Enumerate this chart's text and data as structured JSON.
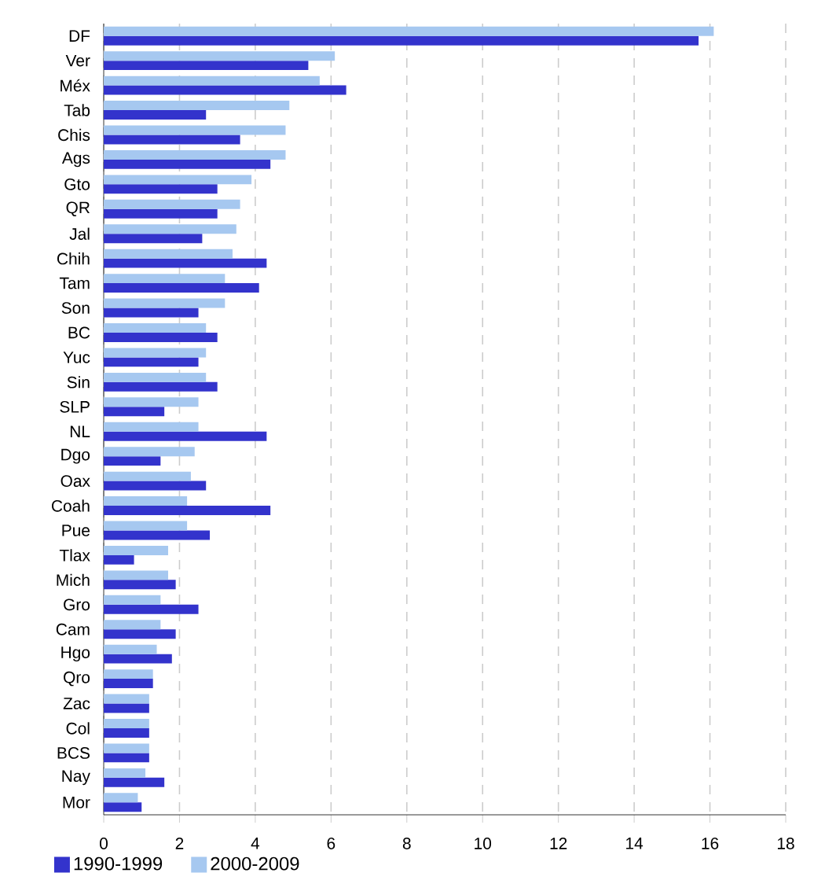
{
  "chart_data": {
    "type": "bar",
    "orientation": "horizontal",
    "categories": [
      "DF",
      "Ver",
      "Méx",
      "Tab",
      "Chis",
      "Ags",
      "Gto",
      "QR",
      "Jal",
      "Chih",
      "Tam",
      "Son",
      "BC",
      "Yuc",
      "Sin",
      "SLP",
      "NL",
      "Dgo",
      "Oax",
      "Coah",
      "Pue",
      "Tlax",
      "Mich",
      "Gro",
      "Cam",
      "Hgo",
      "Qro",
      "Zac",
      "Col",
      "BCS",
      "Nay",
      "Mor"
    ],
    "series": [
      {
        "name": "1990-1999",
        "color": "#3333cc",
        "values": [
          15.7,
          5.4,
          6.4,
          2.7,
          3.6,
          4.4,
          3.0,
          3.0,
          2.6,
          4.3,
          4.1,
          2.5,
          3.0,
          2.5,
          3.0,
          1.6,
          4.3,
          1.5,
          2.7,
          4.4,
          2.8,
          0.8,
          1.9,
          2.5,
          1.9,
          1.8,
          1.3,
          1.2,
          1.2,
          1.2,
          1.6,
          1.0
        ]
      },
      {
        "name": "2000-2009",
        "color": "#a6c8f0",
        "values": [
          16.1,
          6.1,
          5.7,
          4.9,
          4.8,
          4.8,
          3.9,
          3.6,
          3.5,
          3.4,
          3.2,
          3.2,
          2.7,
          2.7,
          2.7,
          2.5,
          2.5,
          2.4,
          2.3,
          2.2,
          2.2,
          1.7,
          1.7,
          1.5,
          1.5,
          1.4,
          1.3,
          1.2,
          1.2,
          1.2,
          1.1,
          0.9
        ]
      }
    ],
    "xlim": [
      0,
      18
    ],
    "xticks": [
      0,
      2,
      4,
      6,
      8,
      10,
      12,
      14,
      16,
      18
    ],
    "grid": "x",
    "legend": "bottom"
  }
}
